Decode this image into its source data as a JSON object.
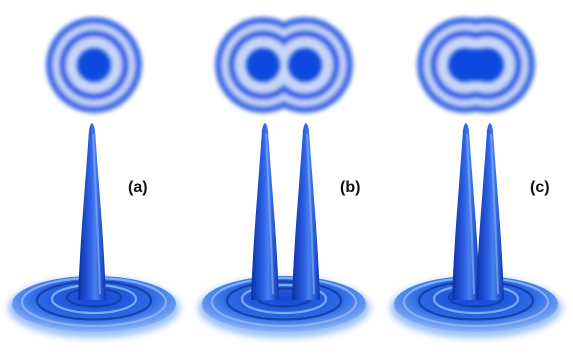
{
  "figure": {
    "panels": [
      {
        "id": "a",
        "label": "(a)",
        "sources": 1,
        "description_peaks": 1
      },
      {
        "id": "b",
        "label": "(b)",
        "sources": 2,
        "description_peaks": 2
      },
      {
        "id": "c",
        "label": "(c)",
        "sources": 2,
        "description_peaks": 2
      }
    ]
  },
  "colors": {
    "core": "#0b49e0",
    "ring": "#2f62e6",
    "ring_light": "#c7d6f6",
    "peak_dark": "#0a2fa8",
    "peak_mid": "#1f56dd",
    "peak_light": "#5b8ef0",
    "base": "#2a6be6",
    "base_light": "#9cc1f6"
  }
}
